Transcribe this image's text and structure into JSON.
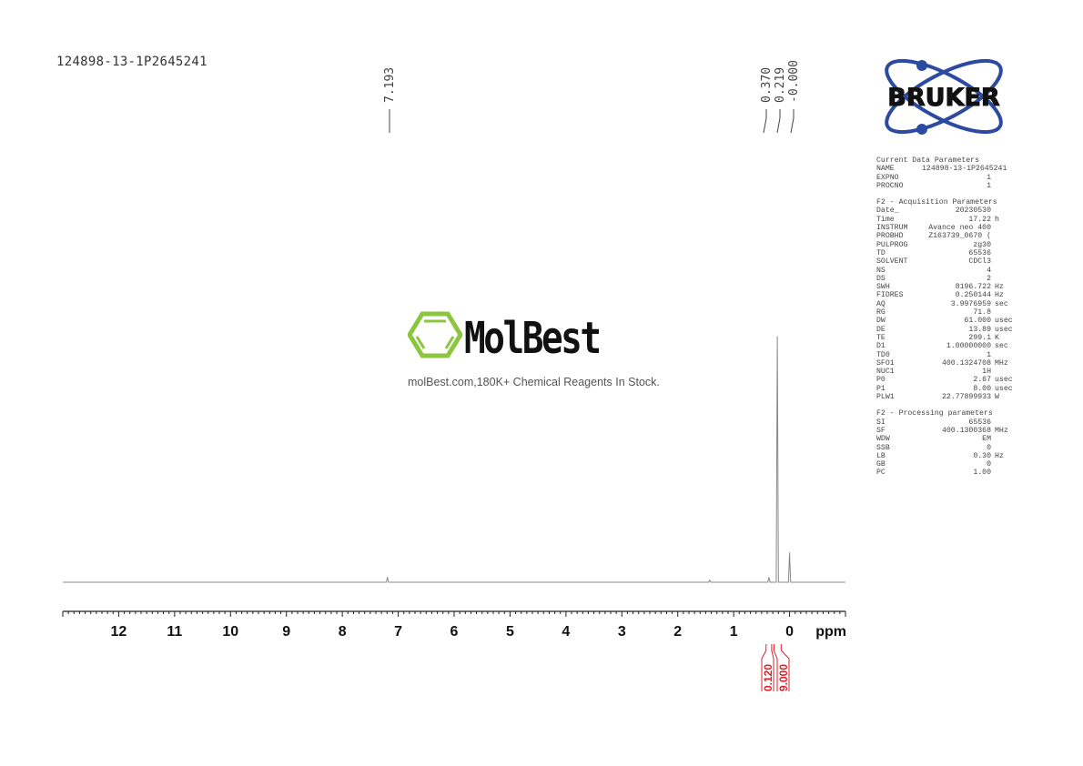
{
  "sample_name": "124898-13-1P2645241",
  "logos": {
    "bruker": "BRUKER",
    "molbest": "MolBest",
    "molbest_tagline": "molBest.com,180K+ Chemical Reagents In Stock.",
    "molbest_green": "#8cc63f",
    "bruker_blue": "#2b4aa0"
  },
  "parameters": {
    "sections": [
      {
        "title": "Current Data Parameters",
        "rows": [
          [
            "NAME",
            "124898-13-1P2645241",
            ""
          ],
          [
            "EXPNO",
            "1",
            ""
          ],
          [
            "PROCNO",
            "1",
            ""
          ]
        ]
      },
      {
        "title": "F2 - Acquisition Parameters",
        "rows": [
          [
            "Date_",
            "20230530",
            ""
          ],
          [
            "Time",
            "17.22",
            "h"
          ],
          [
            "INSTRUM",
            "Avance neo 400",
            ""
          ],
          [
            "PROBHD",
            "Z163739_0670 (",
            ""
          ],
          [
            "PULPROG",
            "zg30",
            ""
          ],
          [
            "TD",
            "65536",
            ""
          ],
          [
            "SOLVENT",
            "CDCl3",
            ""
          ],
          [
            "NS",
            "4",
            ""
          ],
          [
            "DS",
            "2",
            ""
          ],
          [
            "SWH",
            "8196.722",
            "Hz"
          ],
          [
            "FIDRES",
            "0.250144",
            "Hz"
          ],
          [
            "AQ",
            "3.9976959",
            "sec"
          ],
          [
            "RG",
            "71.8",
            ""
          ],
          [
            "DW",
            "61.000",
            "usec"
          ],
          [
            "DE",
            "13.89",
            "usec"
          ],
          [
            "TE",
            "299.1",
            "K"
          ],
          [
            "D1",
            "1.00000000",
            "sec"
          ],
          [
            "TD0",
            "1",
            ""
          ],
          [
            "SFO1",
            "400.1324708",
            "MHz"
          ],
          [
            "NUC1",
            "1H",
            ""
          ],
          [
            "P0",
            "2.67",
            "usec"
          ],
          [
            "P1",
            "8.00",
            "usec"
          ],
          [
            "PLW1",
            "22.77899933",
            "W"
          ]
        ]
      },
      {
        "title": "F2 - Processing parameters",
        "rows": [
          [
            "SI",
            "65536",
            ""
          ],
          [
            "SF",
            "400.1300368",
            "MHz"
          ],
          [
            "WDW",
            "EM",
            ""
          ],
          [
            "SSB",
            "0",
            ""
          ],
          [
            "LB",
            "0.30",
            "Hz"
          ],
          [
            "GB",
            "0",
            ""
          ],
          [
            "PC",
            "1.00",
            ""
          ]
        ]
      }
    ]
  },
  "chart_data": {
    "type": "line",
    "title": "",
    "xlabel": "ppm",
    "x_range": [
      13.0,
      -1.0
    ],
    "x_reversed": true,
    "x_ticks": [
      12,
      11,
      10,
      9,
      8,
      7,
      6,
      5,
      4,
      3,
      2,
      1,
      0
    ],
    "minor_tick_step": 0.1,
    "grid": false,
    "line_color": "#888888",
    "peaks": [
      {
        "ppm": 7.193,
        "intensity": 0.02
      },
      {
        "ppm": 1.43,
        "intensity": 0.008
      },
      {
        "ppm": 0.37,
        "intensity": 0.02
      },
      {
        "ppm": 0.219,
        "intensity": 1.0
      },
      {
        "ppm": 0.0,
        "intensity": 0.12
      }
    ],
    "peak_labels": [
      "7.193",
      "0.370",
      "0.219",
      "-0.000"
    ],
    "integrals": [
      {
        "from": 0.42,
        "to": 0.32,
        "value": "0.120"
      },
      {
        "from": 0.28,
        "to": 0.15,
        "value": "9.000"
      }
    ],
    "integral_color": "#e0202a"
  }
}
